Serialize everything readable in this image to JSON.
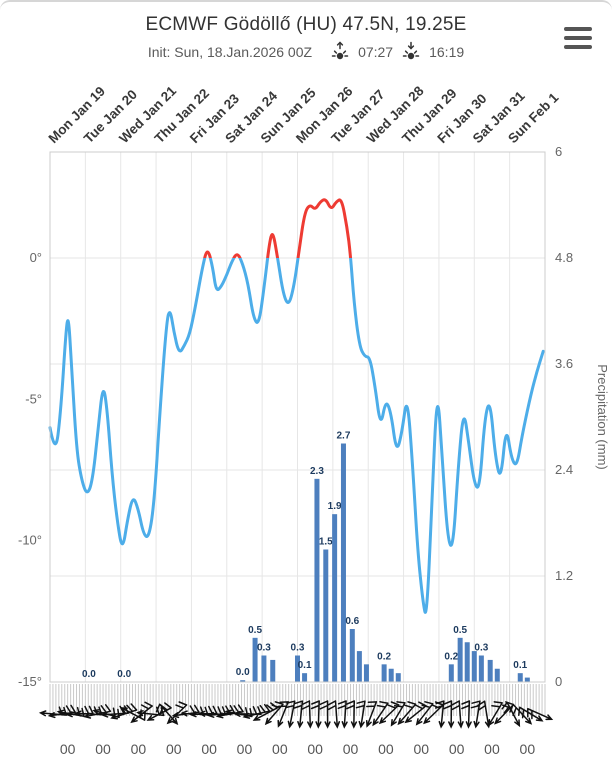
{
  "window": {
    "icons": {
      "menu": "hamburger-menu-icon",
      "sunrise": "sunrise-icon",
      "sunset": "sunset-icon"
    }
  },
  "chart_data": {
    "type": "meteogram (temperature line + precipitation bars + wind barbs)",
    "title": "ECMWF Gödöllő (HU) 47.5N, 19.25E",
    "subtitle_init": "Init: Sun, 18.Jan.2026 00Z",
    "sunrise_time": "07:27",
    "sunset_time": "16:19",
    "x_axis": {
      "day_labels": [
        "Mon Jan 19",
        "Tue Jan 20",
        "Wed Jan 21",
        "Thu Jan 22",
        "Fri Jan 23",
        "Sat Jan 24",
        "Sun Jan 25",
        "Mon Jan 26",
        "Tue Jan 27",
        "Wed Jan 28",
        "Thu Jan 29",
        "Fri Jan 30",
        "Sat Jan 31",
        "Sun Feb 1"
      ],
      "hour_labels": [
        "00",
        "00",
        "00",
        "00",
        "00",
        "00",
        "00",
        "00",
        "00",
        "00",
        "00",
        "00",
        "00",
        "00"
      ]
    },
    "temp_axis": {
      "unit": "°C",
      "min": -15,
      "max": 3.75,
      "ticks": [
        {
          "label": "0°",
          "value": 0
        },
        {
          "label": "-5°",
          "value": -5
        },
        {
          "label": "-10°",
          "value": -10
        },
        {
          "label": "-15°",
          "value": -15
        }
      ]
    },
    "precip_axis": {
      "label": "Precipitation (mm)",
      "min": 0,
      "max": 6,
      "ticks": [
        {
          "label": "6",
          "value": 6
        },
        {
          "label": "4.8",
          "value": 4.8
        },
        {
          "label": "3.6",
          "value": 3.6
        },
        {
          "label": "2.4",
          "value": 2.4
        },
        {
          "label": "1.2",
          "value": 1.2
        },
        {
          "label": "0",
          "value": 0
        }
      ]
    },
    "temperature": {
      "name": "2 m temperature (°C), t in days from init",
      "color_below_zero": "#4dade9",
      "color_above_zero": "#ee3b33",
      "points": [
        [
          0.0,
          -6.0
        ],
        [
          0.15,
          -7.0
        ],
        [
          0.3,
          -5.5
        ],
        [
          0.45,
          -2.6
        ],
        [
          0.52,
          -2.0
        ],
        [
          0.6,
          -3.6
        ],
        [
          0.75,
          -6.8
        ],
        [
          0.9,
          -7.9
        ],
        [
          1.05,
          -8.4
        ],
        [
          1.2,
          -7.9
        ],
        [
          1.35,
          -6.2
        ],
        [
          1.5,
          -4.4
        ],
        [
          1.62,
          -5.4
        ],
        [
          1.75,
          -7.6
        ],
        [
          1.9,
          -9.3
        ],
        [
          2.05,
          -10.4
        ],
        [
          2.2,
          -9.2
        ],
        [
          2.35,
          -8.4
        ],
        [
          2.5,
          -8.9
        ],
        [
          2.65,
          -9.8
        ],
        [
          2.8,
          -9.9
        ],
        [
          2.95,
          -8.6
        ],
        [
          3.1,
          -5.6
        ],
        [
          3.3,
          -2.2
        ],
        [
          3.4,
          -1.8
        ],
        [
          3.5,
          -2.6
        ],
        [
          3.65,
          -3.4
        ],
        [
          3.8,
          -3.1
        ],
        [
          3.95,
          -2.7
        ],
        [
          4.1,
          -1.8
        ],
        [
          4.3,
          -0.4
        ],
        [
          4.45,
          0.4
        ],
        [
          4.6,
          -0.3
        ],
        [
          4.7,
          -1.2
        ],
        [
          4.85,
          -1.0
        ],
        [
          5.0,
          -0.6
        ],
        [
          5.15,
          -0.1
        ],
        [
          5.3,
          0.2
        ],
        [
          5.45,
          -0.2
        ],
        [
          5.6,
          -0.9
        ],
        [
          5.75,
          -2.1
        ],
        [
          5.9,
          -2.4
        ],
        [
          6.05,
          -1.1
        ],
        [
          6.2,
          0.5
        ],
        [
          6.3,
          1.0
        ],
        [
          6.45,
          -0.1
        ],
        [
          6.6,
          -1.3
        ],
        [
          6.75,
          -1.7
        ],
        [
          6.9,
          -1.0
        ],
        [
          7.05,
          0.3
        ],
        [
          7.2,
          1.6
        ],
        [
          7.35,
          1.9
        ],
        [
          7.5,
          1.7
        ],
        [
          7.65,
          2.0
        ],
        [
          7.8,
          2.1
        ],
        [
          7.95,
          1.7
        ],
        [
          8.1,
          2.0
        ],
        [
          8.25,
          2.1
        ],
        [
          8.4,
          1.1
        ],
        [
          8.5,
          0.1
        ],
        [
          8.6,
          -1.6
        ],
        [
          8.75,
          -3.1
        ],
        [
          8.9,
          -3.5
        ],
        [
          9.05,
          -3.5
        ],
        [
          9.2,
          -4.6
        ],
        [
          9.35,
          -6.0
        ],
        [
          9.5,
          -5.0
        ],
        [
          9.65,
          -5.5
        ],
        [
          9.8,
          -6.9
        ],
        [
          9.95,
          -6.2
        ],
        [
          10.1,
          -4.8
        ],
        [
          10.25,
          -7.2
        ],
        [
          10.4,
          -10.4
        ],
        [
          10.55,
          -12.2
        ],
        [
          10.65,
          -12.8
        ],
        [
          10.8,
          -8.8
        ],
        [
          10.95,
          -4.4
        ],
        [
          11.1,
          -7.2
        ],
        [
          11.25,
          -10.0
        ],
        [
          11.4,
          -10.3
        ],
        [
          11.55,
          -7.3
        ],
        [
          11.7,
          -5.3
        ],
        [
          11.85,
          -6.6
        ],
        [
          12.0,
          -8.0
        ],
        [
          12.15,
          -8.2
        ],
        [
          12.3,
          -5.6
        ],
        [
          12.45,
          -5.0
        ],
        [
          12.6,
          -7.1
        ],
        [
          12.75,
          -7.9
        ],
        [
          12.9,
          -5.9
        ],
        [
          13.05,
          -7.1
        ],
        [
          13.2,
          -7.4
        ],
        [
          13.35,
          -6.3
        ],
        [
          13.55,
          -5.1
        ],
        [
          13.75,
          -4.1
        ],
        [
          13.95,
          -3.3
        ]
      ]
    },
    "precipitation": {
      "name": "precipitation per step (mm), t in days from init",
      "color": "#4d7fbe",
      "label_color": "#1c3a5e",
      "bars": [
        {
          "t": 1.1,
          "v": 0,
          "label": "0.0"
        },
        {
          "t": 2.1,
          "v": 0,
          "label": "0.0"
        },
        {
          "t": 5.45,
          "v": 0.02,
          "label": "0.0"
        },
        {
          "t": 5.8,
          "v": 0.5,
          "label": "0.5"
        },
        {
          "t": 6.05,
          "v": 0.3,
          "label": "0.3"
        },
        {
          "t": 6.3,
          "v": 0.25,
          "label": null
        },
        {
          "t": 7.0,
          "v": 0.3,
          "label": "0.3"
        },
        {
          "t": 7.2,
          "v": 0.1,
          "label": "0.1"
        },
        {
          "t": 7.55,
          "v": 2.3,
          "label": "2.3"
        },
        {
          "t": 7.8,
          "v": 1.5,
          "label": "1.5"
        },
        {
          "t": 8.05,
          "v": 1.9,
          "label": "1.9"
        },
        {
          "t": 8.3,
          "v": 2.7,
          "label": "2.7"
        },
        {
          "t": 8.55,
          "v": 0.6,
          "label": "0.6"
        },
        {
          "t": 8.75,
          "v": 0.35,
          "label": null
        },
        {
          "t": 8.95,
          "v": 0.2,
          "label": null
        },
        {
          "t": 9.45,
          "v": 0.2,
          "label": "0.2"
        },
        {
          "t": 9.65,
          "v": 0.15,
          "label": null
        },
        {
          "t": 9.85,
          "v": 0.1,
          "label": null
        },
        {
          "t": 11.35,
          "v": 0.2,
          "label": "0.2"
        },
        {
          "t": 11.6,
          "v": 0.5,
          "label": "0.5"
        },
        {
          "t": 11.8,
          "v": 0.45,
          "label": null
        },
        {
          "t": 12.0,
          "v": 0.35,
          "label": null
        },
        {
          "t": 12.2,
          "v": 0.3,
          "label": "0.3"
        },
        {
          "t": 12.45,
          "v": 0.25,
          "label": null
        },
        {
          "t": 12.65,
          "v": 0.15,
          "label": null
        },
        {
          "t": 13.3,
          "v": 0.1,
          "label": "0.1"
        },
        {
          "t": 13.5,
          "v": 0.05,
          "label": null
        }
      ]
    },
    "wind": {
      "name": "wind barbs (t in days, arrow direction deg: 0=right, 90=down)",
      "color": "#111111",
      "barbs": [
        [
          0.1,
          185
        ],
        [
          0.35,
          172
        ],
        [
          0.6,
          190
        ],
        [
          0.85,
          178
        ],
        [
          1.1,
          183
        ],
        [
          1.35,
          168
        ],
        [
          1.6,
          195
        ],
        [
          1.85,
          176
        ],
        [
          2.1,
          162
        ],
        [
          2.35,
          208
        ],
        [
          2.6,
          142
        ],
        [
          2.85,
          186
        ],
        [
          3.1,
          152
        ],
        [
          3.35,
          48
        ],
        [
          3.6,
          136
        ],
        [
          3.85,
          172
        ],
        [
          4.1,
          184
        ],
        [
          4.35,
          178
        ],
        [
          4.6,
          182
        ],
        [
          4.85,
          174
        ],
        [
          5.1,
          170
        ],
        [
          5.35,
          191
        ],
        [
          5.6,
          181
        ],
        [
          5.85,
          167
        ],
        [
          6.1,
          152
        ],
        [
          6.35,
          131
        ],
        [
          6.6,
          112
        ],
        [
          6.85,
          101
        ],
        [
          7.1,
          96
        ],
        [
          7.35,
          88
        ],
        [
          7.6,
          92
        ],
        [
          7.85,
          90
        ],
        [
          8.1,
          86
        ],
        [
          8.35,
          94
        ],
        [
          8.6,
          91
        ],
        [
          8.85,
          99
        ],
        [
          9.1,
          111
        ],
        [
          9.35,
          124
        ],
        [
          9.6,
          136
        ],
        [
          9.85,
          121
        ],
        [
          10.1,
          131
        ],
        [
          10.35,
          141
        ],
        [
          10.6,
          128
        ],
        [
          10.85,
          136
        ],
        [
          11.1,
          96
        ],
        [
          11.35,
          91
        ],
        [
          11.6,
          86
        ],
        [
          11.85,
          92
        ],
        [
          12.1,
          99
        ],
        [
          12.35,
          81
        ],
        [
          12.6,
          121
        ],
        [
          12.85,
          134
        ],
        [
          13.1,
          62
        ],
        [
          13.35,
          47
        ],
        [
          13.6,
          31
        ],
        [
          13.85,
          24
        ]
      ]
    },
    "grid": {
      "gridline_color": "#e6e6e6",
      "border_color": "#cccccc",
      "minor_tick_color": "#c9c9c9",
      "axis_label_color": "#666666",
      "day_label_color": "#383838",
      "hour_label_color": "#555555"
    }
  }
}
